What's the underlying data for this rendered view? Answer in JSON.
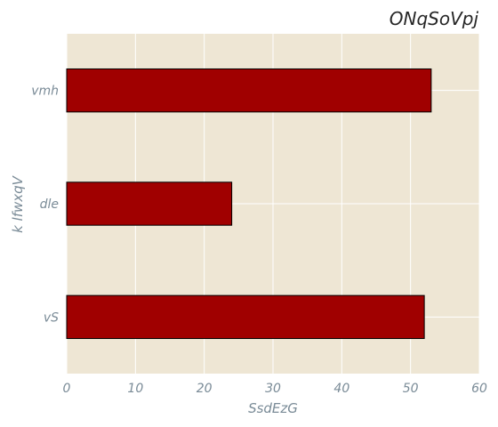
{
  "chart_data": {
    "type": "bar",
    "orientation": "horizontal",
    "title": "ONqSoVpj",
    "xlabel": "SsdEzG",
    "ylabel": "k lfwxqV",
    "categories": [
      "vS",
      "dle",
      "vmh"
    ],
    "values": [
      52,
      24,
      53
    ],
    "xlim": [
      0,
      60
    ],
    "xticks": [
      0,
      10,
      20,
      30,
      40,
      50,
      60
    ],
    "grid": true,
    "legend": "none",
    "colors": {
      "bar": "#a00000",
      "bar_edge": "#000000",
      "plot_bg": "#eee6d4",
      "grid": "#ffffff",
      "tick_text": "#7a8b97",
      "title_text": "#262626"
    }
  }
}
